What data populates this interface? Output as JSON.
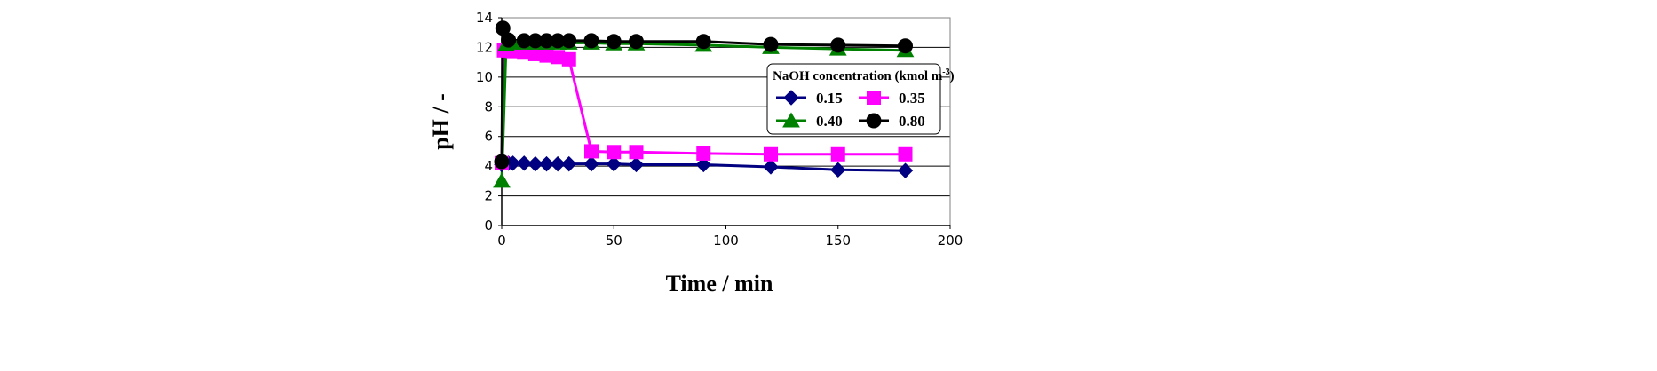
{
  "chart_data": {
    "type": "line",
    "title": "",
    "xlabel": "Time / min",
    "ylabel": "pH / -",
    "xlim": [
      0,
      200
    ],
    "ylim": [
      0,
      14
    ],
    "xticks": [
      0,
      50,
      100,
      150,
      200
    ],
    "yticks": [
      0,
      2,
      4,
      6,
      8,
      10,
      12,
      14
    ],
    "grid": "horizontal",
    "legend": {
      "title": "NaOH concentration (kmol m",
      "title_sup": "-3",
      "title_end": ")",
      "placement": "right",
      "columns": 2
    },
    "series": [
      {
        "name": "0.15",
        "color": "#000080",
        "marker": "diamond",
        "x": [
          0,
          3,
          5,
          10,
          15,
          20,
          25,
          30,
          40,
          50,
          60,
          90,
          120,
          150,
          180
        ],
        "y": [
          4.1,
          4.2,
          4.2,
          4.2,
          4.15,
          4.15,
          4.15,
          4.15,
          4.15,
          4.15,
          4.1,
          4.1,
          3.95,
          3.75,
          3.7
        ]
      },
      {
        "name": "0.35",
        "color": "#ff00ff",
        "marker": "square",
        "x": [
          0,
          1,
          3,
          5,
          10,
          15,
          20,
          25,
          30,
          40,
          50,
          60,
          90,
          120,
          150,
          180
        ],
        "y": [
          4.2,
          11.8,
          11.8,
          11.75,
          11.65,
          11.55,
          11.45,
          11.35,
          11.2,
          5.0,
          4.95,
          4.95,
          4.85,
          4.8,
          4.8,
          4.8
        ]
      },
      {
        "name": "0.40",
        "color": "#008000",
        "marker": "triangle",
        "x": [
          0,
          2,
          5,
          10,
          15,
          20,
          25,
          30,
          40,
          50,
          60,
          90,
          120,
          150,
          180
        ],
        "y": [
          3.0,
          12.2,
          12.3,
          12.3,
          12.3,
          12.3,
          12.3,
          12.3,
          12.3,
          12.25,
          12.25,
          12.15,
          12.0,
          11.9,
          11.8
        ]
      },
      {
        "name": "0.80",
        "color": "#000000",
        "marker": "circle",
        "x": [
          0,
          0.5,
          3,
          10,
          15,
          20,
          25,
          30,
          40,
          50,
          60,
          90,
          120,
          150,
          180
        ],
        "y": [
          4.3,
          13.3,
          12.5,
          12.45,
          12.45,
          12.45,
          12.45,
          12.45,
          12.45,
          12.4,
          12.4,
          12.4,
          12.2,
          12.15,
          12.1
        ]
      }
    ]
  }
}
